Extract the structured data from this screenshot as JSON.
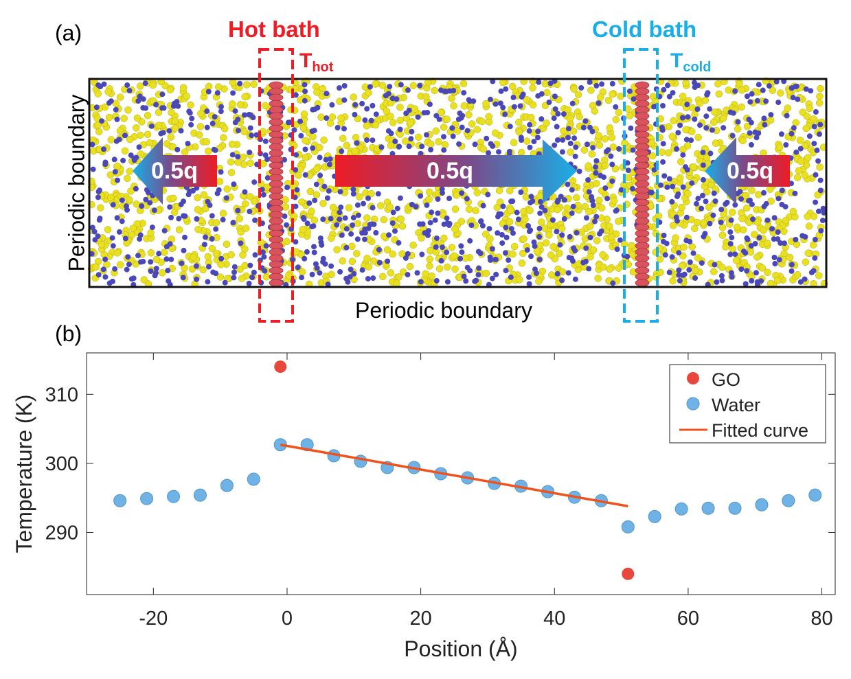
{
  "panel_a": {
    "label": "(a)",
    "hot_bath_title": "Hot bath",
    "cold_bath_title": "Cold bath",
    "t_hot": {
      "base": "T",
      "sub": "hot"
    },
    "t_cold": {
      "base": "T",
      "sub": "cold"
    },
    "boundary_left": "Periodic boundary",
    "boundary_bottom": "Periodic boundary",
    "arrows": [
      "0.5q",
      "0.5q",
      "0.5q"
    ],
    "colors": {
      "hot": "#ee1c25",
      "cold": "#1aaee6",
      "water_o": "#e8e020",
      "water_h": "#4a48b8",
      "go": "#d9535f"
    }
  },
  "panel_b": {
    "label": "(b)"
  },
  "chart_data": {
    "type": "scatter",
    "xlabel": "Position (Å)",
    "ylabel": "Temperature (K)",
    "xlim": [
      -30,
      82
    ],
    "ylim": [
      281,
      316
    ],
    "xticks": [
      -20,
      0,
      20,
      40,
      60,
      80
    ],
    "yticks": [
      290,
      300,
      310
    ],
    "legend_position": "top-right",
    "series": [
      {
        "name": "GO",
        "kind": "points",
        "color": "#e8473b",
        "x": [
          -1,
          51
        ],
        "y": [
          314.0,
          284.0
        ]
      },
      {
        "name": "Water",
        "kind": "points",
        "color": "#6fb3e6",
        "x": [
          -25,
          -21,
          -17,
          -13,
          -9,
          -5,
          -1,
          3,
          7,
          11,
          15,
          19,
          23,
          27,
          31,
          35,
          39,
          43,
          47,
          51,
          55,
          59,
          63,
          67,
          71,
          75,
          79
        ],
        "y": [
          294.6,
          294.9,
          295.2,
          295.4,
          296.8,
          297.7,
          302.7,
          302.7,
          301.1,
          300.3,
          299.4,
          299.4,
          298.5,
          297.9,
          297.1,
          296.7,
          295.9,
          295.1,
          294.6,
          290.8,
          292.3,
          293.4,
          293.5,
          293.5,
          294.0,
          294.6,
          295.4
        ]
      },
      {
        "name": "Fitted curve",
        "kind": "line",
        "color": "#f0521c",
        "x": [
          -1,
          51
        ],
        "y": [
          302.7,
          293.8
        ]
      }
    ]
  }
}
